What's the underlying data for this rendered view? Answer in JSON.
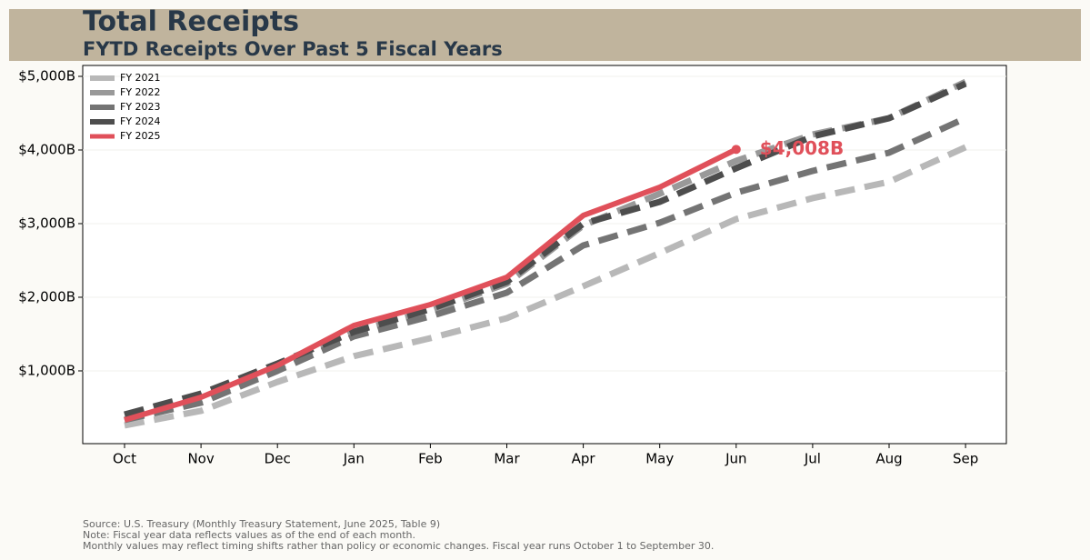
{
  "chart_data": {
    "type": "line",
    "title": "Total Receipts",
    "subtitle": "FYTD Receipts Over Past 5 Fiscal Years",
    "categories": [
      "Oct",
      "Nov",
      "Dec",
      "Jan",
      "Feb",
      "Mar",
      "Apr",
      "May",
      "Jun",
      "Jul",
      "Aug",
      "Sep"
    ],
    "series": [
      {
        "name": "FY 2021",
        "color": "#b8b8b8",
        "style": "dashed",
        "values": [
          260,
          457,
          850,
          1200,
          1444,
          1716,
          2150,
          2600,
          3062,
          3346,
          3568,
          4037
        ]
      },
      {
        "name": "FY 2022",
        "color": "#999999",
        "style": "dashed",
        "values": [
          333,
          605,
          1037,
          1531,
          1815,
          2185,
          2975,
          3407,
          3852,
          4210,
          4432,
          4926
        ]
      },
      {
        "name": "FY 2023",
        "color": "#747474",
        "style": "dashed",
        "values": [
          333,
          568,
          1000,
          1469,
          1741,
          2062,
          2704,
          3012,
          3420,
          3716,
          3963,
          4432
        ]
      },
      {
        "name": "FY 2024",
        "color": "#4d4d4d",
        "style": "dashed",
        "values": [
          407,
          691,
          1099,
          1531,
          1840,
          2210,
          3000,
          3296,
          3753,
          4185,
          4432,
          4901
        ]
      },
      {
        "name": "FY 2025",
        "color": "#e0505a",
        "style": "solid",
        "values": [
          333,
          642,
          1074,
          1617,
          1901,
          2272,
          3111,
          3494,
          4008,
          null,
          null,
          null
        ]
      }
    ],
    "annotation": "$4,008B",
    "ylim": [
      12,
      5148
    ],
    "yticks": [
      {
        "value": 1000,
        "label": "$1,000B"
      },
      {
        "value": 2000,
        "label": "$2,000B"
      },
      {
        "value": 3000,
        "label": "$3,000B"
      },
      {
        "value": 4000,
        "label": "$4,000B"
      },
      {
        "value": 5000,
        "label": "$5,000B"
      }
    ],
    "grid": true,
    "legend": "upper left",
    "notes": [
      "Source: U.S. Treasury (Monthly Treasury Statement, June 2025, Table 9)",
      "Note: Fiscal year data reflects values as of the end of each month.",
      "Monthly values may reflect timing shifts rather than policy or economic changes. Fiscal year runs October 1 to September 30."
    ]
  }
}
